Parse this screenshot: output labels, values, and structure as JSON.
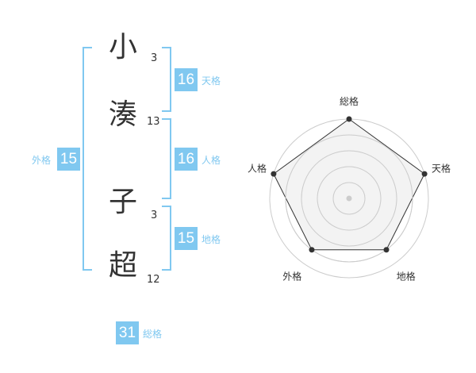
{
  "name": {
    "chars": [
      {
        "char": "小",
        "strokes": "3"
      },
      {
        "char": "湊",
        "strokes": "13"
      },
      {
        "char": "子",
        "strokes": "3"
      },
      {
        "char": "超",
        "strokes": "12"
      }
    ]
  },
  "fortunes": {
    "tenkaku": {
      "label": "天格",
      "value": "16"
    },
    "jinkaku": {
      "label": "人格",
      "value": "16"
    },
    "chikaku": {
      "label": "地格",
      "value": "15"
    },
    "gaikaku": {
      "label": "外格",
      "value": "15"
    },
    "soukaku": {
      "label": "総格",
      "value": "31"
    }
  },
  "chart_data": {
    "type": "radar",
    "axes": [
      "総格",
      "天格",
      "地格",
      "外格",
      "人格"
    ],
    "values": [
      5,
      5,
      4,
      4,
      5
    ],
    "range": [
      0,
      5
    ],
    "grid_rings": 5,
    "colors": {
      "fill": "#f0f0f0",
      "line": "#333333",
      "grid": "#cccccc",
      "accent": "#80c8f0"
    }
  }
}
